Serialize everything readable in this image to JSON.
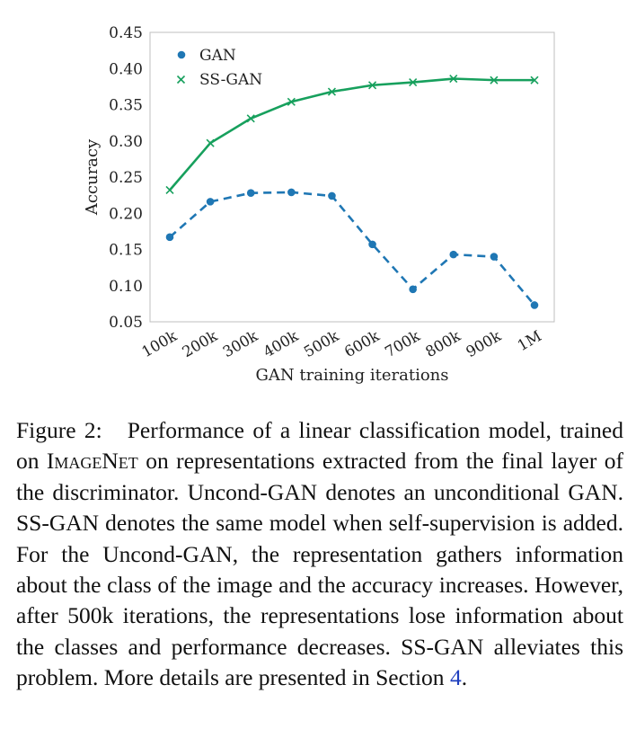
{
  "chart_data": {
    "type": "line",
    "xlabel": "GAN training iterations",
    "ylabel": "Accuracy",
    "categories": [
      "100k",
      "200k",
      "300k",
      "400k",
      "500k",
      "600k",
      "700k",
      "800k",
      "900k",
      "1M"
    ],
    "ylim": [
      0.05,
      0.45
    ],
    "yticks": [
      "0.05",
      "0.10",
      "0.15",
      "0.20",
      "0.25",
      "0.30",
      "0.35",
      "0.40",
      "0.45"
    ],
    "grid": false,
    "legend_position": "top-left",
    "series": [
      {
        "name": "GAN",
        "marker": "circle",
        "line_style": "dashed",
        "color": "#1f77b4",
        "values": [
          0.167,
          0.216,
          0.228,
          0.229,
          0.224,
          0.157,
          0.095,
          0.143,
          0.14,
          0.073
        ]
      },
      {
        "name": "SS-GAN",
        "marker": "x",
        "line_style": "solid",
        "color": "#17a05d",
        "values": [
          0.232,
          0.297,
          0.331,
          0.354,
          0.368,
          0.377,
          0.381,
          0.386,
          0.384,
          0.384
        ]
      }
    ]
  },
  "caption": {
    "label": "Figure 2:",
    "part1": "Performance of a linear classification model, trained on ",
    "dataset": "ImageNet",
    "part2": " on representations extracted from the final layer of the discriminator. Uncond-GAN denotes an unconditional GAN. SS-GAN denotes the same model when self-supervision is added. For the Uncond-GAN, the representation gathers information about the class of the image and the accuracy increases.  However, after 500k iterations, the representations lose information about the classes and performance decreases. SS-GAN alleviates this problem. More details are presented in Section ",
    "section_ref": "4",
    "part3": "."
  }
}
